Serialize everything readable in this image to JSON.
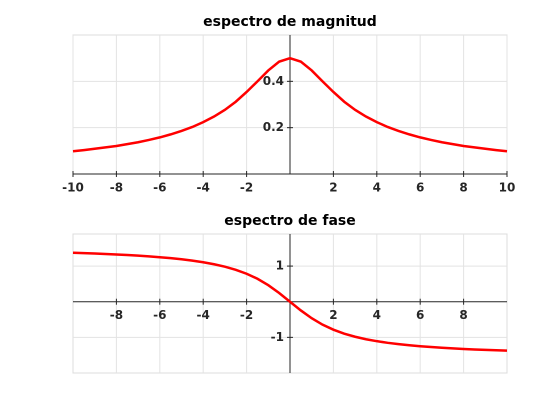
{
  "chart_data": [
    {
      "type": "line",
      "title": "espectro de magnitud",
      "x": [
        -10,
        -9.5,
        -9,
        -8.5,
        -8,
        -7.5,
        -7,
        -6.5,
        -6,
        -5.5,
        -5,
        -4.5,
        -4,
        -3.5,
        -3,
        -2.5,
        -2,
        -1.5,
        -1,
        -0.5,
        0,
        0.5,
        1,
        1.5,
        2,
        2.5,
        3,
        3.5,
        4,
        4.5,
        5,
        5.5,
        6,
        6.5,
        7,
        7.5,
        8,
        8.5,
        9,
        9.5,
        10
      ],
      "series": [
        {
          "color": "#ff0000",
          "values": [
            0.098,
            0.103,
            0.109,
            0.115,
            0.121,
            0.129,
            0.137,
            0.147,
            0.158,
            0.171,
            0.186,
            0.203,
            0.224,
            0.248,
            0.277,
            0.312,
            0.354,
            0.4,
            0.447,
            0.485,
            0.5,
            0.485,
            0.447,
            0.4,
            0.354,
            0.312,
            0.277,
            0.248,
            0.224,
            0.203,
            0.186,
            0.171,
            0.158,
            0.147,
            0.137,
            0.129,
            0.121,
            0.115,
            0.109,
            0.103,
            0.098
          ]
        }
      ],
      "xlim": [
        -10,
        10
      ],
      "xticks": [
        -10,
        -8,
        -6,
        -4,
        -2,
        2,
        4,
        6,
        8,
        10
      ],
      "ylim": [
        0,
        0.6
      ],
      "yticks": [
        0.2,
        0.4
      ],
      "grid": true
    },
    {
      "type": "line",
      "title": "espectro de fase",
      "x": [
        -10,
        -9.5,
        -9,
        -8.5,
        -8,
        -7.5,
        -7,
        -6.5,
        -6,
        -5.5,
        -5,
        -4.5,
        -4,
        -3.5,
        -3,
        -2.5,
        -2,
        -1.5,
        -1,
        -0.5,
        0,
        0.5,
        1,
        1.5,
        2,
        2.5,
        3,
        3.5,
        4,
        4.5,
        5,
        5.5,
        6,
        6.5,
        7,
        7.5,
        8,
        8.5,
        9,
        9.5,
        10
      ],
      "series": [
        {
          "color": "#ff0000",
          "values": [
            1.373,
            1.363,
            1.352,
            1.34,
            1.326,
            1.31,
            1.292,
            1.272,
            1.249,
            1.222,
            1.19,
            1.153,
            1.107,
            1.052,
            0.983,
            0.896,
            0.785,
            0.644,
            0.464,
            0.245,
            0,
            -0.245,
            -0.464,
            -0.644,
            -0.785,
            -0.896,
            -0.983,
            -1.052,
            -1.107,
            -1.153,
            -1.19,
            -1.222,
            -1.249,
            -1.272,
            -1.292,
            -1.31,
            -1.326,
            -1.34,
            -1.352,
            -1.363,
            -1.373
          ]
        }
      ],
      "xlim": [
        -10,
        10
      ],
      "xticks": [
        -8,
        -6,
        -4,
        -2,
        2,
        4,
        6,
        8
      ],
      "ylim": [
        -2,
        1.9
      ],
      "yticks": [
        -1,
        1
      ],
      "grid": true
    }
  ]
}
